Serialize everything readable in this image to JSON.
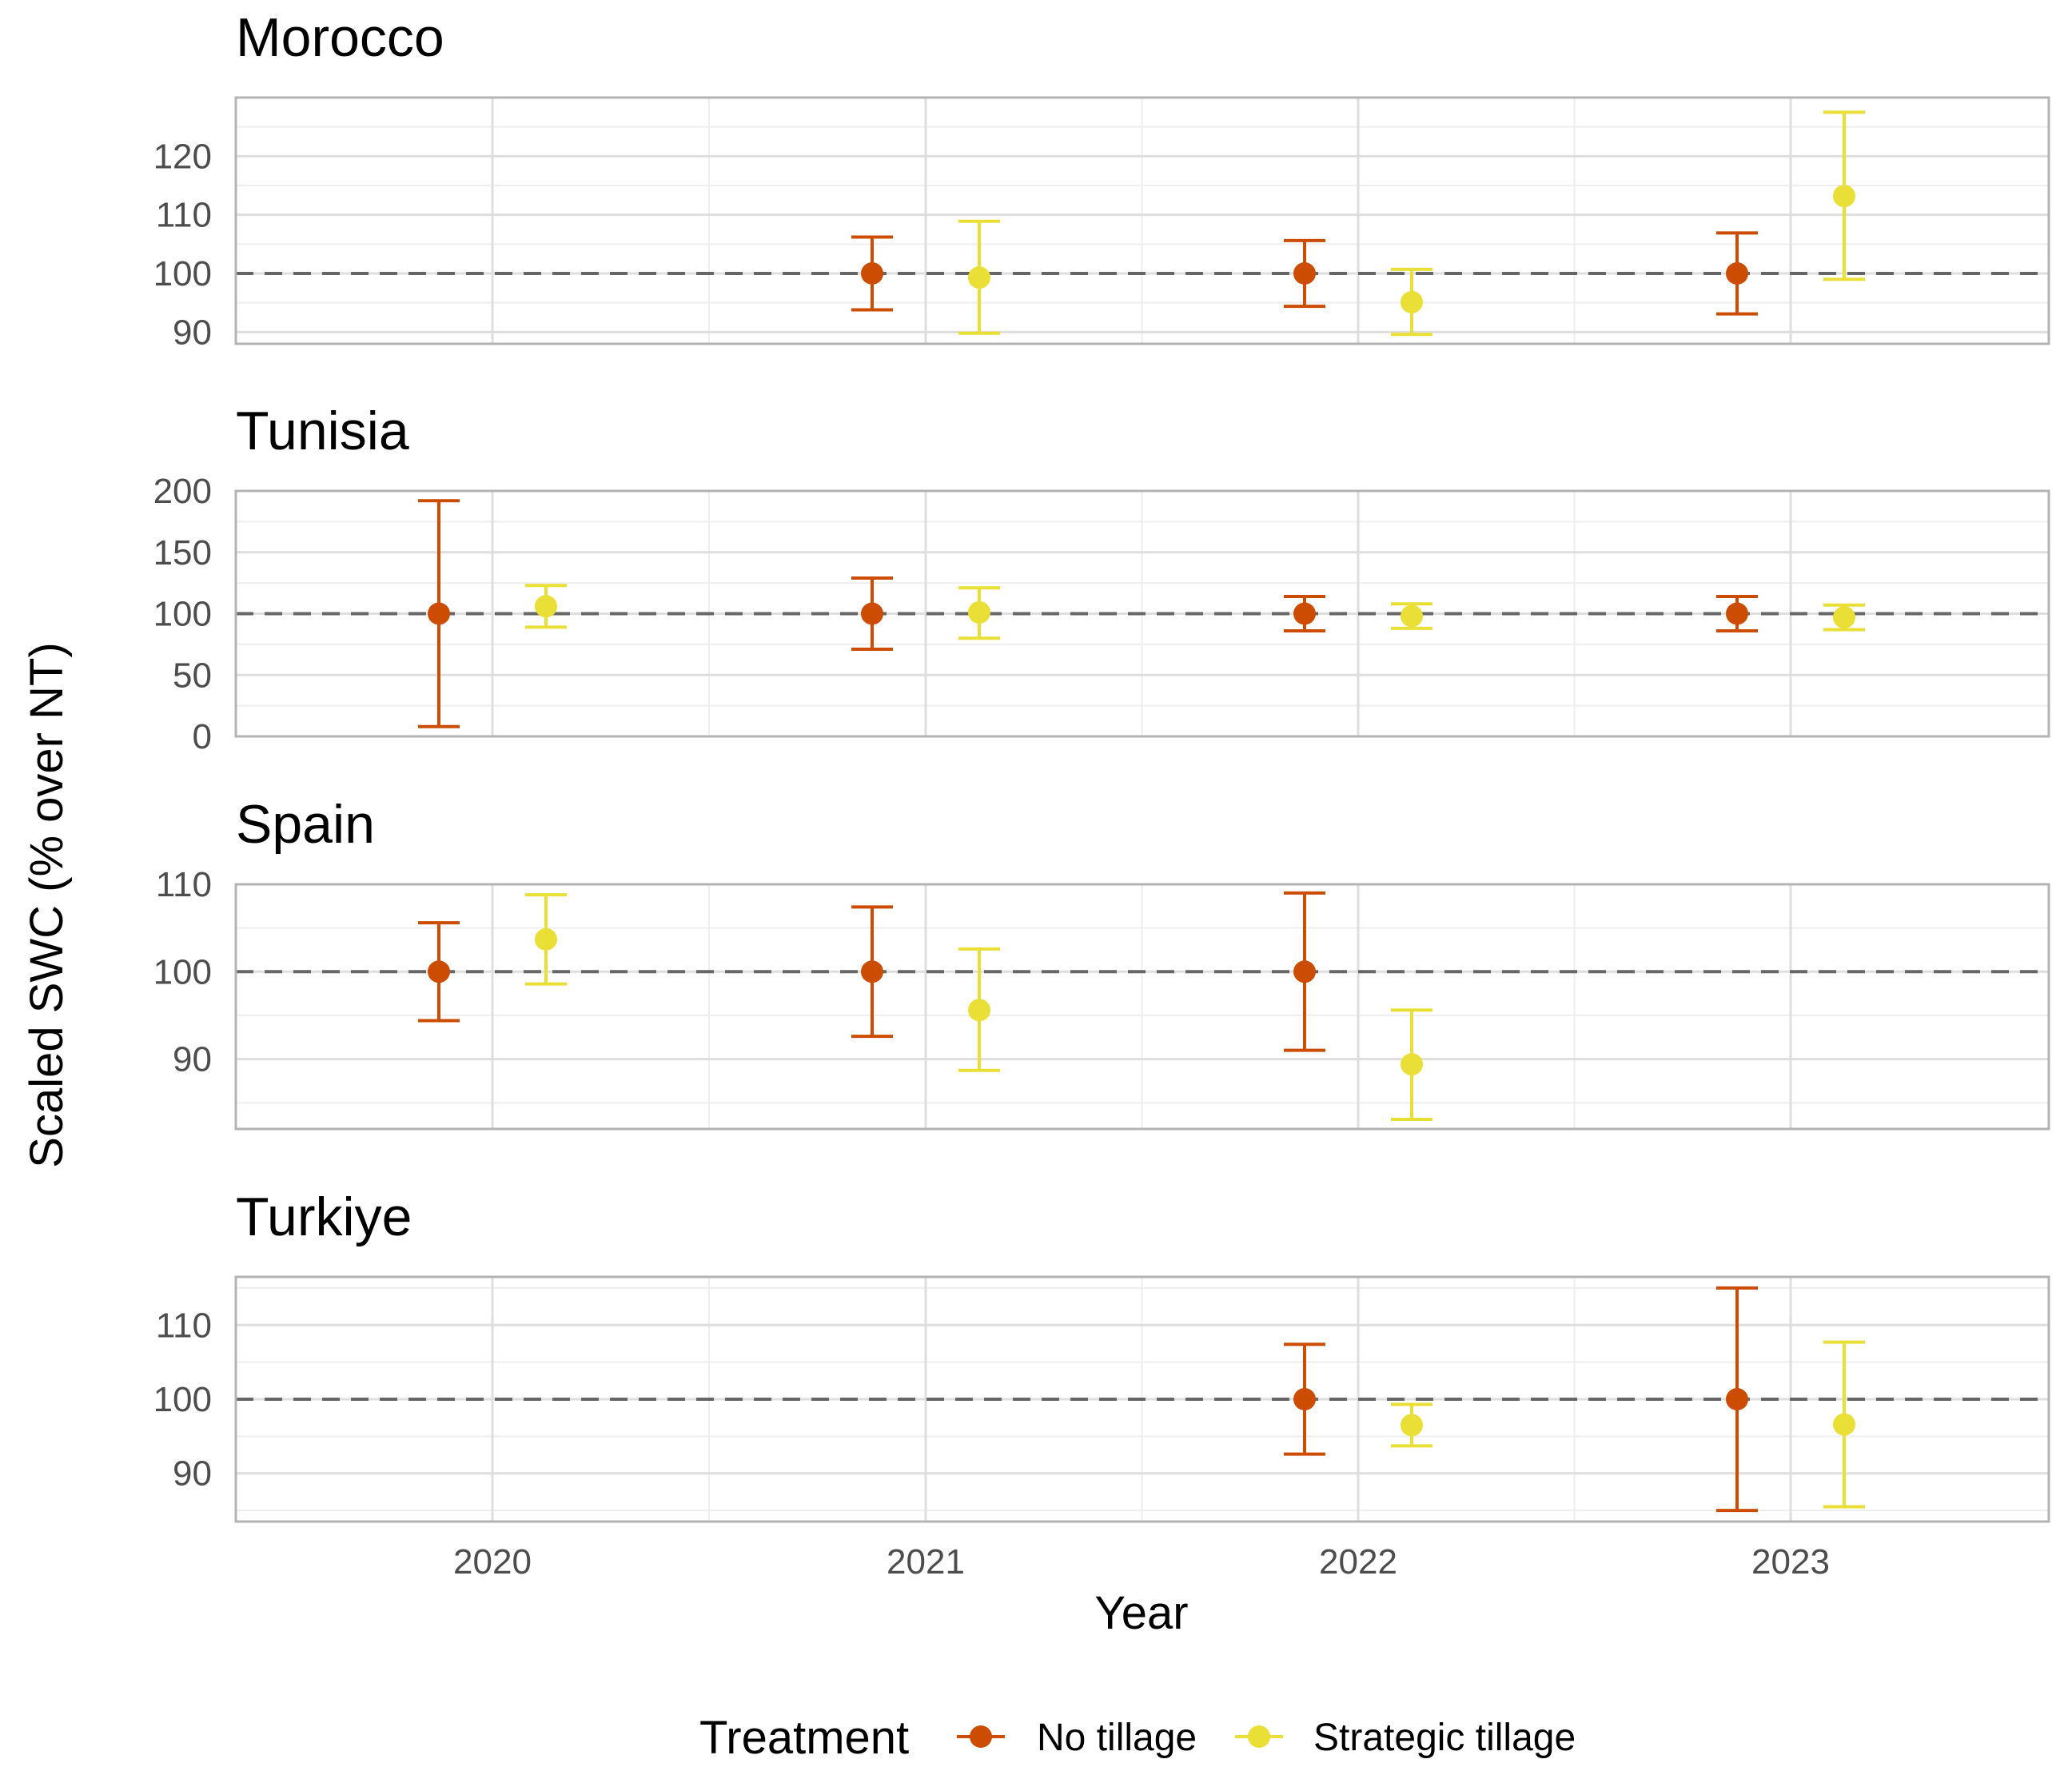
{
  "chart_data": {
    "type": "errorbar-dot",
    "xlabel": "Year",
    "ylabel": "Scaled SWC (% over NT)",
    "years": [
      "2020",
      "2021",
      "2022",
      "2023"
    ],
    "reference_line": 100,
    "legend": {
      "title": "Treatment",
      "placement": "bottom",
      "entries": [
        {
          "name": "No tillage",
          "color": "#cc4c02"
        },
        {
          "name": "Strategic tillage",
          "color": "#eadf36"
        }
      ]
    },
    "panels": [
      {
        "title": "Morocco",
        "ylim": [
          88,
          130
        ],
        "yticks": [
          90,
          100,
          110,
          120
        ],
        "tick_labels": [
          "90",
          "100",
          "110",
          "120"
        ],
        "points": [
          {
            "year": "2021",
            "treatment": "No tillage",
            "value": 100,
            "lower": 93.8,
            "upper": 106.2
          },
          {
            "year": "2021",
            "treatment": "Strategic tillage",
            "value": 99.3,
            "lower": 89.8,
            "upper": 108.9
          },
          {
            "year": "2022",
            "treatment": "No tillage",
            "value": 100,
            "lower": 94.4,
            "upper": 105.6
          },
          {
            "year": "2022",
            "treatment": "Strategic tillage",
            "value": 95.1,
            "lower": 89.6,
            "upper": 100.7
          },
          {
            "year": "2023",
            "treatment": "No tillage",
            "value": 100,
            "lower": 93.1,
            "upper": 106.9
          },
          {
            "year": "2023",
            "treatment": "Strategic tillage",
            "value": 113.2,
            "lower": 99.0,
            "upper": 127.5
          }
        ]
      },
      {
        "title": "Tunisia",
        "ylim": [
          0,
          200
        ],
        "yticks": [
          0,
          50,
          100,
          150,
          200
        ],
        "tick_labels": [
          "0",
          "50",
          "100",
          "150",
          "200"
        ],
        "points": [
          {
            "year": "2020",
            "treatment": "No tillage",
            "value": 100,
            "lower": 8,
            "upper": 192
          },
          {
            "year": "2020",
            "treatment": "Strategic tillage",
            "value": 106,
            "lower": 89,
            "upper": 123
          },
          {
            "year": "2021",
            "treatment": "No tillage",
            "value": 100,
            "lower": 71,
            "upper": 129
          },
          {
            "year": "2021",
            "treatment": "Strategic tillage",
            "value": 101,
            "lower": 80,
            "upper": 121
          },
          {
            "year": "2022",
            "treatment": "No tillage",
            "value": 100,
            "lower": 86,
            "upper": 114
          },
          {
            "year": "2022",
            "treatment": "Strategic tillage",
            "value": 98,
            "lower": 88,
            "upper": 108
          },
          {
            "year": "2023",
            "treatment": "No tillage",
            "value": 100,
            "lower": 86,
            "upper": 114
          },
          {
            "year": "2023",
            "treatment": "Strategic tillage",
            "value": 97,
            "lower": 87,
            "upper": 107
          }
        ]
      },
      {
        "title": "Spain",
        "ylim": [
          82,
          110
        ],
        "yticks": [
          90,
          100,
          110
        ],
        "tick_labels": [
          "90",
          "100",
          "110"
        ],
        "points": [
          {
            "year": "2020",
            "treatment": "No tillage",
            "value": 100,
            "lower": 94.4,
            "upper": 105.6
          },
          {
            "year": "2020",
            "treatment": "Strategic tillage",
            "value": 103.7,
            "lower": 98.6,
            "upper": 108.8
          },
          {
            "year": "2021",
            "treatment": "No tillage",
            "value": 100,
            "lower": 92.6,
            "upper": 107.4
          },
          {
            "year": "2021",
            "treatment": "Strategic tillage",
            "value": 95.6,
            "lower": 88.7,
            "upper": 102.6
          },
          {
            "year": "2022",
            "treatment": "No tillage",
            "value": 100,
            "lower": 91.0,
            "upper": 109.0
          },
          {
            "year": "2022",
            "treatment": "Strategic tillage",
            "value": 89.4,
            "lower": 83.1,
            "upper": 95.6
          }
        ]
      },
      {
        "title": "Turkiye",
        "ylim": [
          83.5,
          116.5
        ],
        "yticks": [
          90,
          100,
          110
        ],
        "tick_labels": [
          "90",
          "100",
          "110"
        ],
        "points": [
          {
            "year": "2022",
            "treatment": "No tillage",
            "value": 100,
            "lower": 92.6,
            "upper": 107.4
          },
          {
            "year": "2022",
            "treatment": "Strategic tillage",
            "value": 96.5,
            "lower": 93.7,
            "upper": 99.3
          },
          {
            "year": "2023",
            "treatment": "No tillage",
            "value": 100,
            "lower": 85.0,
            "upper": 115.0
          },
          {
            "year": "2023",
            "treatment": "Strategic tillage",
            "value": 96.6,
            "lower": 85.5,
            "upper": 107.7
          }
        ]
      }
    ]
  }
}
